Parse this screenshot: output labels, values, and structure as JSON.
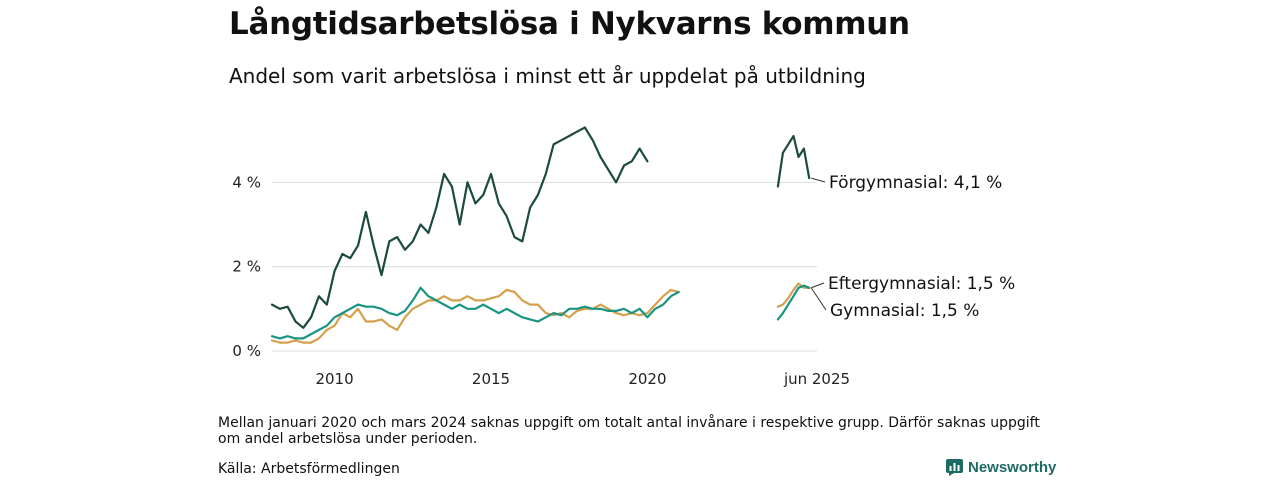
{
  "title": "Långtidsarbetslösa i Nykvarns kommun",
  "subtitle": "Andel som varit arbetslösa i minst ett år uppdelat på utbildning",
  "note": "Mellan januari 2020 och mars 2024 saknas uppgift om totalt antal invånare i respektive grupp. Därför saknas uppgift om andel arbetslösa under perioden.",
  "source": "Källa: Arbetsförmedlingen",
  "brand": "Newsworthy",
  "colors": {
    "forgymnasial": "#1d4a3f",
    "gymnasial": "#1a9482",
    "eftergymnasial": "#d4a04b",
    "grid": "#dcdcdc"
  },
  "chart_data": {
    "type": "line",
    "title": "Långtidsarbetslösa i Nykvarns kommun",
    "subtitle": "Andel som varit arbetslösa i minst ett år uppdelat på utbildning",
    "xlabel": "",
    "ylabel": "",
    "ylim": [
      0,
      6
    ],
    "y_ticks": [
      {
        "value": 0,
        "label": "0 %"
      },
      {
        "value": 2,
        "label": "2 %"
      },
      {
        "value": 4,
        "label": "4 %"
      }
    ],
    "x_ticks": [
      {
        "value": 2010,
        "label": "2010"
      },
      {
        "value": 2015,
        "label": "2015"
      },
      {
        "value": 2020,
        "label": "2020"
      },
      {
        "value": 2025.42,
        "label": "jun 2025"
      }
    ],
    "x_ranges": [
      [
        2008.0,
        2021.0
      ],
      [
        2024.17,
        2025.42
      ]
    ],
    "grid": true,
    "series": [
      {
        "name": "Förgymnasial",
        "end_label": "Förgymnasial: 4,1 %",
        "color_key": "forgymnasial",
        "x": [
          2008.0,
          2008.25,
          2008.5,
          2008.75,
          2009.0,
          2009.25,
          2009.5,
          2009.75,
          2010.0,
          2010.25,
          2010.5,
          2010.75,
          2011.0,
          2011.25,
          2011.5,
          2011.75,
          2012.0,
          2012.25,
          2012.5,
          2012.75,
          2013.0,
          2013.25,
          2013.5,
          2013.75,
          2014.0,
          2014.25,
          2014.5,
          2014.75,
          2015.0,
          2015.25,
          2015.5,
          2015.75,
          2016.0,
          2016.25,
          2016.5,
          2016.75,
          2017.0,
          2017.25,
          2017.5,
          2017.75,
          2018.0,
          2018.25,
          2018.5,
          2018.75,
          2019.0,
          2019.25,
          2019.5,
          2019.75,
          2020.0,
          2020.25,
          2020.5,
          2020.75,
          2021.0,
          null,
          2024.17,
          2024.33,
          2024.5,
          2024.67,
          2024.83,
          2025.0,
          2025.17,
          2025.33,
          2025.42
        ],
        "values": [
          1.1,
          1.0,
          1.05,
          0.7,
          0.55,
          0.8,
          1.3,
          1.1,
          1.9,
          2.3,
          2.2,
          2.5,
          3.3,
          2.5,
          1.8,
          2.6,
          2.7,
          2.4,
          2.6,
          3.0,
          2.8,
          3.4,
          4.2,
          3.9,
          3.0,
          4.0,
          3.5,
          3.7,
          4.2,
          3.5,
          3.2,
          2.7,
          2.6,
          3.4,
          3.7,
          4.2,
          4.9,
          5.0,
          5.1,
          5.2,
          5.3,
          5.0,
          4.6,
          4.3,
          4.0,
          4.4,
          4.5,
          4.8,
          4.5,
          null,
          null,
          null,
          null,
          null,
          3.9,
          4.7,
          4.9,
          5.1,
          4.6,
          4.8,
          4.1,
          null,
          null
        ]
      },
      {
        "name": "Gymnasial",
        "end_label": "Gymnasial: 1,5 %",
        "color_key": "gymnasial",
        "x": [
          2008.0,
          2008.25,
          2008.5,
          2008.75,
          2009.0,
          2009.25,
          2009.5,
          2009.75,
          2010.0,
          2010.25,
          2010.5,
          2010.75,
          2011.0,
          2011.25,
          2011.5,
          2011.75,
          2012.0,
          2012.25,
          2012.5,
          2012.75,
          2013.0,
          2013.25,
          2013.5,
          2013.75,
          2014.0,
          2014.25,
          2014.5,
          2014.75,
          2015.0,
          2015.25,
          2015.5,
          2015.75,
          2016.0,
          2016.25,
          2016.5,
          2016.75,
          2017.0,
          2017.25,
          2017.5,
          2017.75,
          2018.0,
          2018.25,
          2018.5,
          2018.75,
          2019.0,
          2019.25,
          2019.5,
          2019.75,
          2020.0,
          2020.25,
          2020.5,
          2020.75,
          2021.0,
          null,
          2024.17,
          2024.33,
          2024.5,
          2024.67,
          2024.83,
          2025.0,
          2025.17,
          2025.33,
          2025.42
        ],
        "values": [
          0.35,
          0.3,
          0.35,
          0.3,
          0.3,
          0.4,
          0.5,
          0.6,
          0.8,
          0.9,
          1.0,
          1.1,
          1.05,
          1.05,
          1.0,
          0.9,
          0.85,
          0.95,
          1.2,
          1.5,
          1.3,
          1.2,
          1.1,
          1.0,
          1.1,
          1.0,
          1.0,
          1.1,
          1.0,
          0.9,
          1.0,
          0.9,
          0.8,
          0.75,
          0.7,
          0.8,
          0.9,
          0.85,
          1.0,
          1.0,
          1.05,
          1.0,
          1.0,
          0.95,
          0.95,
          1.0,
          0.9,
          1.0,
          0.8,
          1.0,
          1.1,
          1.3,
          1.4,
          null,
          0.75,
          0.9,
          1.1,
          1.3,
          1.5,
          1.55,
          1.5,
          null,
          null
        ]
      },
      {
        "name": "Eftergymnasial",
        "end_label": "Eftergymnasial: 1,5 %",
        "color_key": "eftergymnasial",
        "x": [
          2008.0,
          2008.25,
          2008.5,
          2008.75,
          2009.0,
          2009.25,
          2009.5,
          2009.75,
          2010.0,
          2010.25,
          2010.5,
          2010.75,
          2011.0,
          2011.25,
          2011.5,
          2011.75,
          2012.0,
          2012.25,
          2012.5,
          2012.75,
          2013.0,
          2013.25,
          2013.5,
          2013.75,
          2014.0,
          2014.25,
          2014.5,
          2014.75,
          2015.0,
          2015.25,
          2015.5,
          2015.75,
          2016.0,
          2016.25,
          2016.5,
          2016.75,
          2017.0,
          2017.25,
          2017.5,
          2017.75,
          2018.0,
          2018.25,
          2018.5,
          2018.75,
          2019.0,
          2019.25,
          2019.5,
          2019.75,
          2020.0,
          2020.25,
          2020.5,
          2020.75,
          2021.0,
          null,
          2024.17,
          2024.33,
          2024.5,
          2024.67,
          2024.83,
          2025.0,
          2025.17,
          2025.33,
          2025.42
        ],
        "values": [
          0.25,
          0.2,
          0.2,
          0.25,
          0.2,
          0.2,
          0.3,
          0.5,
          0.6,
          0.9,
          0.8,
          1.0,
          0.7,
          0.7,
          0.75,
          0.6,
          0.5,
          0.8,
          1.0,
          1.1,
          1.2,
          1.2,
          1.3,
          1.2,
          1.2,
          1.3,
          1.2,
          1.2,
          1.25,
          1.3,
          1.45,
          1.4,
          1.2,
          1.1,
          1.1,
          0.9,
          0.85,
          0.9,
          0.8,
          0.95,
          1.0,
          1.0,
          1.1,
          1.0,
          0.9,
          0.85,
          0.9,
          0.85,
          0.9,
          1.1,
          1.3,
          1.45,
          1.4,
          null,
          1.05,
          1.1,
          1.25,
          1.45,
          1.6,
          1.5,
          1.5,
          null,
          null
        ]
      }
    ]
  }
}
